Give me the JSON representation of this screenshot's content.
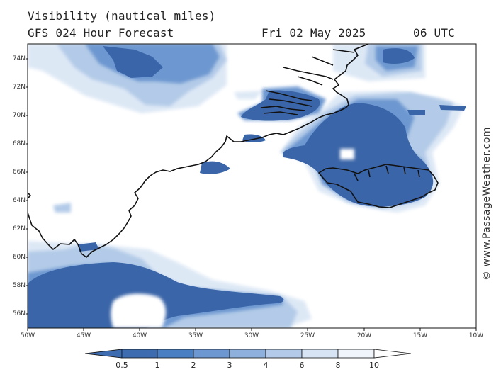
{
  "header": {
    "title": "Visibility (nautical miles)",
    "subtitle": "GFS 024 Hour Forecast",
    "date": "Fri 02 May 2025",
    "time": "06 UTC"
  },
  "axes": {
    "lat_labels": [
      "74N",
      "72N",
      "70N",
      "68N",
      "66N",
      "64N",
      "62N",
      "60N",
      "58N",
      "56N"
    ],
    "lon_labels": [
      "50W",
      "45W",
      "40W",
      "35W",
      "30W",
      "25W",
      "20W",
      "15W",
      "10W"
    ]
  },
  "colorbar": {
    "labels": [
      "0.5",
      "1",
      "2",
      "3",
      "4",
      "6",
      "8",
      "10"
    ],
    "colors": [
      "#3d6cb0",
      "#4a7fc3",
      "#6d97d0",
      "#8eb0dc",
      "#b3cbe8",
      "#d7e4f4",
      "#f0f4fb"
    ]
  },
  "watermark": "© www.PassageWeather.com",
  "colors": {
    "fog_dense": "#3a65a8",
    "fog_medium": "#6d97d0",
    "fog_light": "#b3cbe8",
    "fog_faint": "#dde8f5",
    "coast": "#111111"
  }
}
